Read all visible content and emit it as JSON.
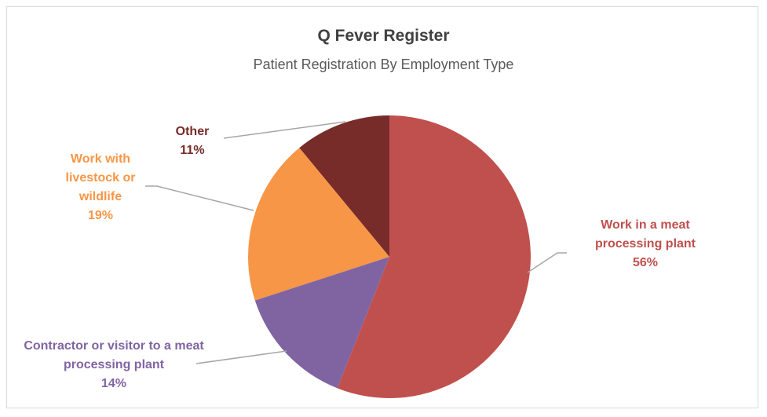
{
  "chart_data": {
    "type": "pie",
    "title": "Q Fever Register",
    "subtitle": "Patient Registration By Employment Type",
    "categories": [
      "Work in a meat processing plant",
      "Contractor or visitor to a meat processing plant",
      "Work with livestock or wildlife",
      "Other"
    ],
    "values": [
      56,
      14,
      19,
      11
    ],
    "value_labels": [
      "56%",
      "14%",
      "19%",
      "11%"
    ],
    "colors": [
      "#c0504d",
      "#8064a2",
      "#f79646",
      "#772c2a"
    ]
  }
}
